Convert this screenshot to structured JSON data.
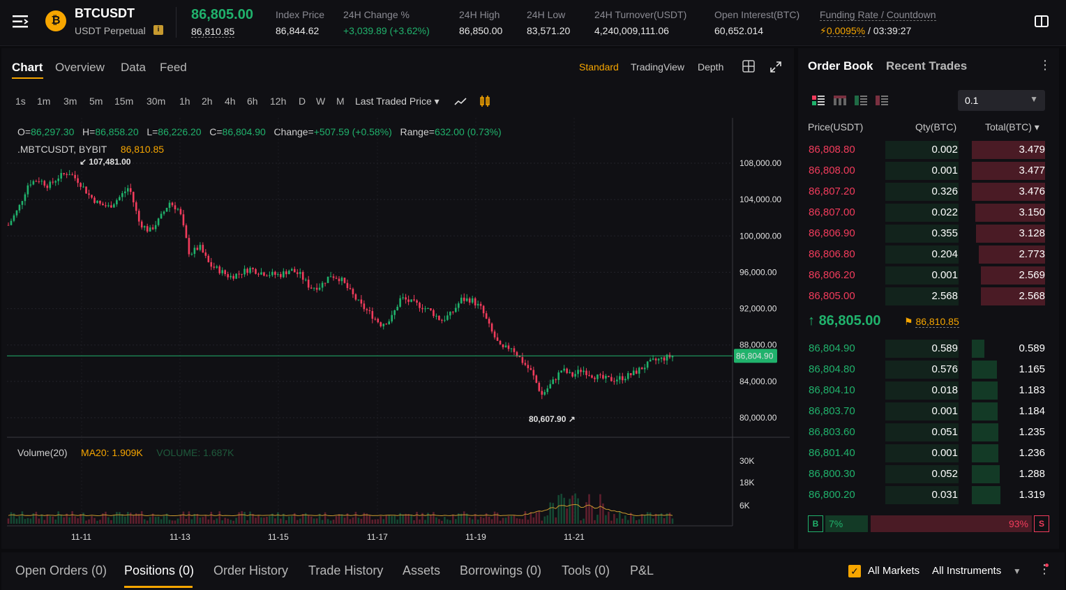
{
  "header": {
    "symbol": "BTCUSDT",
    "symbol_sub": "USDT Perpetual",
    "last_price": "86,805.00",
    "mark_price": "86,810.85",
    "stats": [
      {
        "label": "Index Price",
        "value": "86,844.62"
      },
      {
        "label": "24H Change %",
        "value": "+3,039.89 (+3.62%)"
      },
      {
        "label": "24H High",
        "value": "86,850.00"
      },
      {
        "label": "24H Low",
        "value": "83,571.20"
      },
      {
        "label": "24H Turnover(USDT)",
        "value": "4,240,009,111.06"
      },
      {
        "label": "Open Interest(BTC)",
        "value": "60,652.014"
      },
      {
        "label": "Funding Rate / Countdown",
        "value_rate": "0.0095%",
        "value_sep": " / ",
        "value_time": "03:39:27"
      }
    ],
    "coin_glyph": "₿"
  },
  "chart_tabs": {
    "tabs": [
      "Chart",
      "Overview",
      "Data",
      "Feed"
    ],
    "active": "Chart",
    "views": [
      "Standard",
      "TradingView",
      "Depth"
    ],
    "active_view": "Standard"
  },
  "intervals": {
    "items": [
      "1s",
      "1m",
      "3m",
      "5m",
      "15m",
      "30m",
      "1h",
      "2h",
      "4h",
      "6h",
      "12h",
      "D",
      "W",
      "M"
    ],
    "active": "1h",
    "price_type": "Last Traded Price"
  },
  "ohlc": {
    "o_label": "O=",
    "o": "86,297.30",
    "h_label": "H=",
    "h": "86,858.20",
    "l_label": "L=",
    "l": "86,226.20",
    "c_label": "C=",
    "c": "86,804.90",
    "change_label": "Change=",
    "change": "+507.59 (+0.58%)",
    "range_label": "Range=",
    "range": "632.00 (0.73%)",
    "source": ".MBTCUSDT, BYBIT",
    "source_price": "86,810.85"
  },
  "chart_data": {
    "type": "candlestick",
    "y_ticks": [
      "108,000.00",
      "104,000.00",
      "100,000.00",
      "96,000.00",
      "92,000.00",
      "88,000.00",
      "84,000.00",
      "80,000.00"
    ],
    "y_tick_values": [
      108000,
      104000,
      100000,
      96000,
      92000,
      88000,
      84000,
      80000
    ],
    "x_ticks": [
      "11-11",
      "11-13",
      "11-15",
      "11-17",
      "11-19",
      "11-21"
    ],
    "high_marker": "107,481.00",
    "low_marker": "80,607.90",
    "current_price_label": "86,804.90",
    "current_price": 86804.9,
    "close_path": [
      101200,
      103000,
      105800,
      106200,
      105500,
      106500,
      107000,
      106000,
      104500,
      103500,
      103200,
      104200,
      105400,
      101500,
      100500,
      101800,
      103700,
      102800,
      98000,
      98800,
      96800,
      96200,
      95500,
      95900,
      96400,
      96000,
      95800,
      95700,
      96300,
      95700,
      94300,
      94500,
      95700,
      95300,
      93800,
      92400,
      91400,
      90300,
      90800,
      93200,
      92700,
      92300,
      91700,
      90700,
      91400,
      93000,
      93000,
      92000,
      89500,
      87500,
      87800,
      86300,
      85000,
      82500,
      83800,
      85300,
      84600,
      85300,
      84700,
      84300,
      84200,
      84400,
      84800,
      85500,
      86200,
      86500,
      86804.9
    ],
    "volume": {
      "title": "Volume(20)",
      "ma_label": "MA20: 1.909K",
      "vol_label": "VOLUME: 1.687K",
      "ticks": [
        "30K",
        "18K",
        "6K"
      ]
    }
  },
  "orderbook": {
    "tabs": [
      "Order Book",
      "Recent Trades"
    ],
    "precision": "0.1",
    "columns": [
      "Price(USDT)",
      "Qty(BTC)",
      "Total(BTC)"
    ],
    "asks": [
      {
        "price": "86,808.80",
        "qty": "0.002",
        "total": "3.479",
        "depth": 1.0
      },
      {
        "price": "86,808.00",
        "qty": "0.001",
        "total": "3.477",
        "depth": 1.0
      },
      {
        "price": "86,807.20",
        "qty": "0.326",
        "total": "3.476",
        "depth": 1.0
      },
      {
        "price": "86,807.00",
        "qty": "0.022",
        "total": "3.150",
        "depth": 0.95
      },
      {
        "price": "86,806.90",
        "qty": "0.355",
        "total": "3.128",
        "depth": 0.94
      },
      {
        "price": "86,806.80",
        "qty": "0.204",
        "total": "2.773",
        "depth": 0.9
      },
      {
        "price": "86,806.20",
        "qty": "0.001",
        "total": "2.569",
        "depth": 0.88
      },
      {
        "price": "86,805.00",
        "qty": "2.568",
        "total": "2.568",
        "depth": 0.88
      }
    ],
    "last_price": "86,805.00",
    "mark_price": "86,810.85",
    "bids": [
      {
        "price": "86,804.90",
        "qty": "0.589",
        "total": "0.589",
        "depth": 0.17
      },
      {
        "price": "86,804.80",
        "qty": "0.576",
        "total": "1.165",
        "depth": 0.34
      },
      {
        "price": "86,804.10",
        "qty": "0.018",
        "total": "1.183",
        "depth": 0.35
      },
      {
        "price": "86,803.70",
        "qty": "0.001",
        "total": "1.184",
        "depth": 0.35
      },
      {
        "price": "86,803.60",
        "qty": "0.051",
        "total": "1.235",
        "depth": 0.36
      },
      {
        "price": "86,801.40",
        "qty": "0.001",
        "total": "1.236",
        "depth": 0.36
      },
      {
        "price": "86,800.30",
        "qty": "0.052",
        "total": "1.288",
        "depth": 0.38
      },
      {
        "price": "86,800.20",
        "qty": "0.031",
        "total": "1.319",
        "depth": 0.39
      }
    ],
    "buy_label": "B",
    "buy_pct": "7%",
    "sell_pct": "93%",
    "sell_label": "S",
    "buy_ratio": 0.07
  },
  "bottom_tabs": {
    "tabs": [
      "Open Orders (0)",
      "Positions (0)",
      "Order History",
      "Trade History",
      "Assets",
      "Borrowings (0)",
      "Tools (0)",
      "P&L"
    ],
    "active": "Positions (0)",
    "all_markets": "All Markets",
    "all_instruments": "All Instruments"
  },
  "colors": {
    "up": "#20b26c",
    "down": "#f23c5c",
    "accent": "#f7a600"
  }
}
